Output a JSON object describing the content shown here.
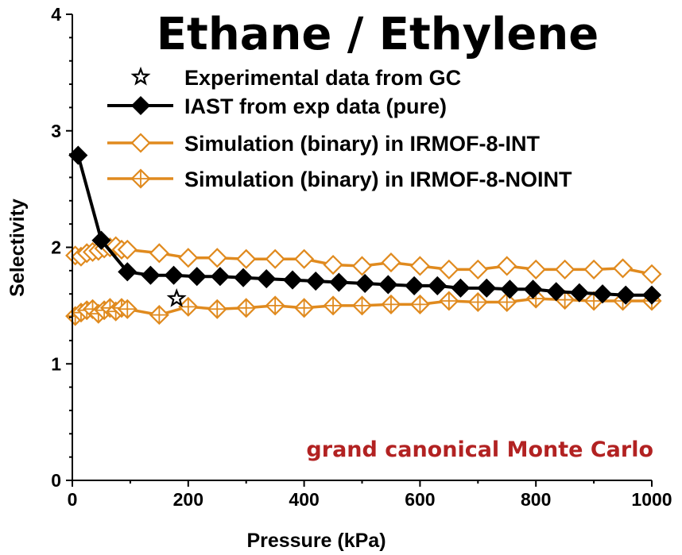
{
  "chart_data": {
    "type": "line",
    "title": "Ethane / Ethylene",
    "xlabel": "Pressure (kPa)",
    "ylabel": "Selectivity",
    "xlim": [
      0,
      1000
    ],
    "ylim": [
      0,
      4
    ],
    "xticks": [
      "0",
      "200",
      "400",
      "600",
      "800",
      "1000"
    ],
    "yticks": [
      "0",
      "1",
      "2",
      "3",
      "4"
    ],
    "grid": false,
    "legend_position": "top-right",
    "annotation": "grand canonical Monte Carlo",
    "colors": {
      "axis": "#000000",
      "iast": "#000000",
      "simulation": "#E08A1E",
      "annotation": "#B22222"
    },
    "series": [
      {
        "name": "Experimental data from GC",
        "marker": "star",
        "line": false,
        "x": [
          180
        ],
        "y": [
          1.56
        ]
      },
      {
        "name": "IAST from exp data (pure)",
        "marker": "diamond-filled",
        "line": true,
        "x": [
          10,
          50,
          95,
          135,
          175,
          215,
          255,
          295,
          335,
          380,
          420,
          460,
          505,
          545,
          590,
          630,
          670,
          715,
          755,
          795,
          835,
          875,
          915,
          955,
          1000
        ],
        "y": [
          2.79,
          2.06,
          1.79,
          1.76,
          1.76,
          1.75,
          1.75,
          1.74,
          1.73,
          1.72,
          1.71,
          1.7,
          1.69,
          1.68,
          1.67,
          1.67,
          1.65,
          1.65,
          1.64,
          1.64,
          1.62,
          1.61,
          1.6,
          1.59,
          1.59
        ]
      },
      {
        "name": "Simulation (binary) in IRMOF-8-INT",
        "marker": "diamond-open",
        "line": true,
        "x": [
          5,
          15,
          25,
          35,
          45,
          55,
          65,
          75,
          85,
          95,
          150,
          200,
          250,
          300,
          350,
          400,
          450,
          500,
          550,
          600,
          650,
          700,
          750,
          800,
          850,
          900,
          950,
          1000
        ],
        "y": [
          1.93,
          1.92,
          1.95,
          1.96,
          1.97,
          1.99,
          2.0,
          2.01,
          1.98,
          1.98,
          1.95,
          1.91,
          1.91,
          1.9,
          1.9,
          1.9,
          1.85,
          1.84,
          1.87,
          1.84,
          1.81,
          1.81,
          1.84,
          1.81,
          1.81,
          1.81,
          1.82,
          1.77
        ]
      },
      {
        "name": "Simulation (binary) in IRMOF-8-NOINT",
        "marker": "diamond-cross",
        "line": true,
        "x": [
          5,
          15,
          25,
          35,
          45,
          55,
          65,
          75,
          85,
          95,
          150,
          200,
          250,
          300,
          350,
          400,
          450,
          500,
          550,
          600,
          650,
          700,
          750,
          800,
          850,
          900,
          950,
          1000
        ],
        "y": [
          1.41,
          1.44,
          1.46,
          1.47,
          1.43,
          1.46,
          1.48,
          1.45,
          1.48,
          1.47,
          1.42,
          1.49,
          1.47,
          1.48,
          1.5,
          1.48,
          1.5,
          1.5,
          1.51,
          1.51,
          1.54,
          1.53,
          1.53,
          1.56,
          1.55,
          1.54,
          1.54,
          1.54
        ]
      }
    ]
  }
}
